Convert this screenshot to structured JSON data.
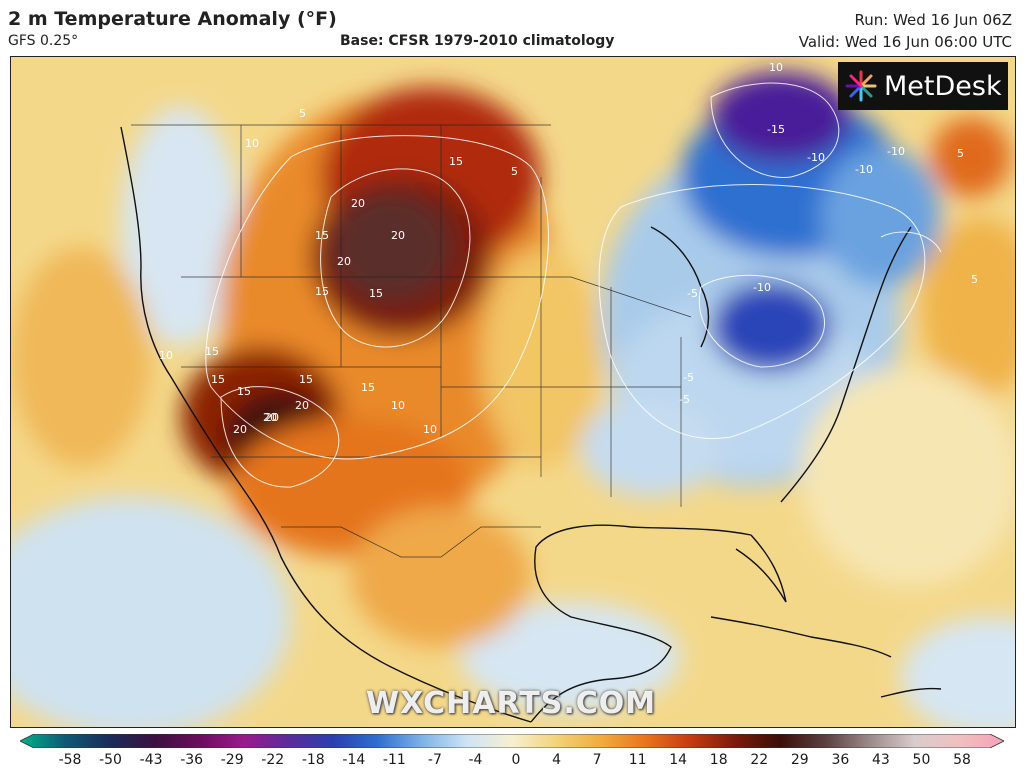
{
  "header": {
    "title": "2 m Temperature Anomaly (°F)",
    "model": "GFS 0.25°",
    "base": "Base: CFSR 1979-2010 climatology",
    "run": "Run: Wed 16 Jun 06Z",
    "valid": "Valid: Wed 16 Jun 06:00 UTC"
  },
  "branding": {
    "logo_text": "MetDesk",
    "watermark": "WXCHARTS.COM"
  },
  "map": {
    "region": "North America",
    "contour_labels": [
      "10",
      "-15",
      "-10",
      "-10",
      "-10",
      "-10",
      "-5",
      "-5",
      "-5",
      "5",
      "5",
      "5",
      "15",
      "15",
      "20",
      "20",
      "15",
      "15",
      "20",
      "20",
      "15",
      "15",
      "15",
      "10",
      "10",
      "10",
      "15",
      "20",
      "20",
      "20",
      "15",
      "10",
      "5"
    ]
  },
  "colorbar": {
    "ticks": [
      "-58",
      "-50",
      "-43",
      "-36",
      "-29",
      "-22",
      "-18",
      "-14",
      "-11",
      "-7",
      "-4",
      "0",
      "4",
      "7",
      "11",
      "14",
      "18",
      "22",
      "29",
      "36",
      "43",
      "50",
      "58"
    ],
    "colors": [
      "#00b38a",
      "#0e5a76",
      "#1a2c5a",
      "#3b1040",
      "#6b0b5e",
      "#9a1a8c",
      "#5b2c9a",
      "#2a3fb0",
      "#2f6fd0",
      "#7fb3e6",
      "#cfe4f5",
      "#f7f0d0",
      "#f3d27a",
      "#f0ab3e",
      "#e9731d",
      "#c53a12",
      "#7a1b0b",
      "#3b0e07",
      "#5a4040",
      "#9c8a8a",
      "#d9cccc",
      "#f0c0c0",
      "#f7a0b8"
    ]
  }
}
